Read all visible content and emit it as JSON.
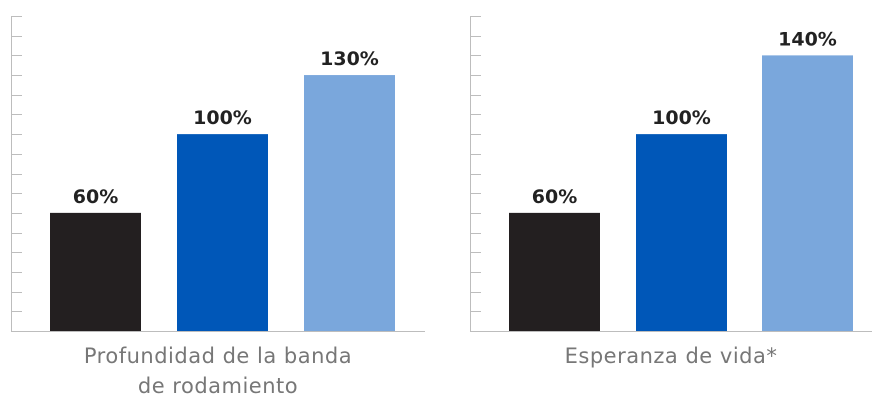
{
  "chart_data": [
    {
      "type": "bar",
      "categories": [
        "",
        "",
        ""
      ],
      "values": [
        60,
        100,
        130
      ],
      "value_labels": [
        "60%",
        "100%",
        "130%"
      ],
      "colors": [
        "#231f20",
        "#0057b8",
        "#7aa7dc"
      ],
      "xlabel": "Profundidad de la banda de rodamiento",
      "xlabel_lines": [
        "Profundidad de la banda",
        "de rodamiento"
      ],
      "ylim": [
        0,
        160
      ],
      "y_tick_step": 10,
      "y_tick_labels": false,
      "grid": false
    },
    {
      "type": "bar",
      "categories": [
        "",
        "",
        ""
      ],
      "values": [
        60,
        100,
        140
      ],
      "value_labels": [
        "60%",
        "100%",
        "140%"
      ],
      "colors": [
        "#231f20",
        "#0057b8",
        "#7aa7dc"
      ],
      "xlabel": "Esperanza de vida*",
      "xlabel_lines": [
        "Esperanza de vida*"
      ],
      "ylim": [
        0,
        160
      ],
      "y_tick_step": 10,
      "y_tick_labels": false,
      "grid": false
    }
  ]
}
